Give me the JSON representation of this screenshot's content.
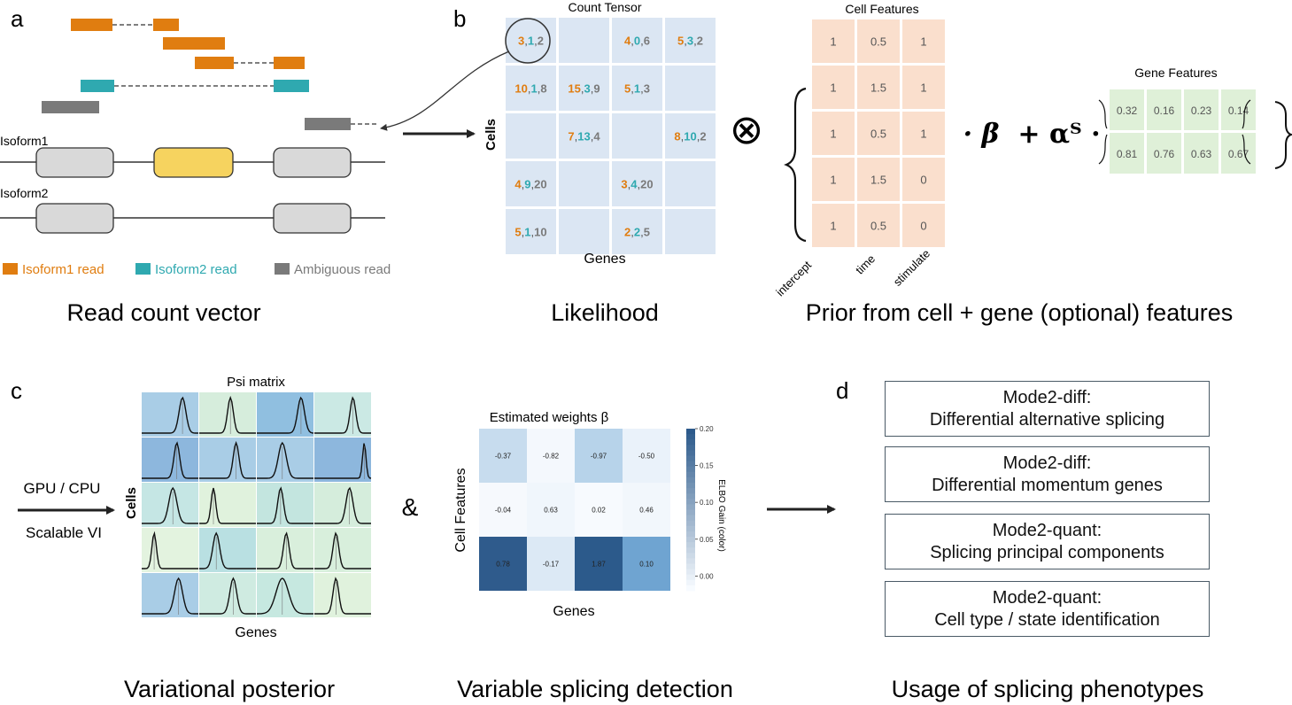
{
  "panel_letters": {
    "a": "a",
    "b": "b",
    "c": "c",
    "d": "d"
  },
  "panel_a": {
    "isoform1_label": "Isoform1",
    "isoform2_label": "Isoform2",
    "legend": [
      {
        "label": "Isoform1 read",
        "color": "#e07d10"
      },
      {
        "label": "Isoform2 read",
        "color": "#2fa9b0"
      },
      {
        "label": "Ambiguous read",
        "color": "#7a7a7a"
      }
    ],
    "caption": "Read count vector"
  },
  "panel_b": {
    "title": "Count Tensor",
    "row_axis": "Cells",
    "col_axis": "Genes",
    "caption": "Likelihood",
    "grid": [
      [
        [
          "3",
          "1",
          "2"
        ],
        [],
        [
          "4",
          "0",
          "6"
        ],
        [
          "5",
          "3",
          "2"
        ]
      ],
      [
        [
          "10",
          "1",
          "8"
        ],
        [
          "15",
          "3",
          "9"
        ],
        [
          "5",
          "1",
          "3"
        ],
        []
      ],
      [
        [],
        [
          "7",
          "13",
          "4"
        ],
        [],
        [
          "8",
          "10",
          "2"
        ]
      ],
      [
        [
          "4",
          "9",
          "20"
        ],
        [],
        [
          "3",
          "4",
          "20"
        ],
        []
      ],
      [
        [
          "5",
          "1",
          "10"
        ],
        [],
        [
          "2",
          "2",
          "5"
        ],
        []
      ]
    ],
    "digit_colors": [
      "#e07d10",
      "#2fa9b0",
      "#7a7a7a"
    ]
  },
  "prior": {
    "otimes": "⊗",
    "cell_features_title": "Cell Features",
    "cell_features": [
      [
        "1",
        "0.5",
        "1"
      ],
      [
        "1",
        "1.5",
        "1"
      ],
      [
        "1",
        "0.5",
        "1"
      ],
      [
        "1",
        "1.5",
        "0"
      ],
      [
        "1",
        "0.5",
        "0"
      ]
    ],
    "cell_feature_names": [
      "intercept",
      "time",
      "stimulate"
    ],
    "beta_term": "· β",
    "alpha_term": "+ αᵀ ·",
    "gene_features_title": "Gene Features",
    "gene_features": [
      [
        "0.32",
        "0.16",
        "0.23",
        "0.14"
      ],
      [
        "0.81",
        "0.76",
        "0.63",
        "0.67"
      ]
    ],
    "caption": "Prior from cell + gene (optional) features"
  },
  "panel_c": {
    "arrow_top": "GPU / CPU",
    "arrow_bottom": "Scalable VI",
    "psi_title": "Psi matrix",
    "row_axis": "Cells",
    "col_axis": "Genes",
    "caption": "Variational posterior"
  },
  "ampersand": "&",
  "weights": {
    "title": "Estimated weights β",
    "row_axis": "Cell Features",
    "col_axis": "Genes",
    "values": [
      [
        "-0.37",
        "-0.82",
        "-0.97",
        "-0.50"
      ],
      [
        "-0.04",
        "0.63",
        "0.02",
        "0.46"
      ],
      [
        "0.78",
        "-0.17",
        "1.87",
        "0.10"
      ]
    ],
    "colorbar_label": "ELBO Gain (color)",
    "colorbar_ticks": [
      "0.20",
      "0.15",
      "0.10",
      "0.05",
      "0.00"
    ],
    "caption": "Variable splicing detection"
  },
  "panel_d": {
    "boxes": [
      {
        "line1": "Mode2-diff:",
        "line2": "Differential alternative splicing"
      },
      {
        "line1": "Mode2-diff:",
        "line2": "Differential momentum genes"
      },
      {
        "line1": "Mode2-quant:",
        "line2": "Splicing principal components"
      },
      {
        "line1": "Mode2-quant:",
        "line2": "Cell type / state identification"
      }
    ],
    "caption": "Usage of splicing phenotypes"
  }
}
